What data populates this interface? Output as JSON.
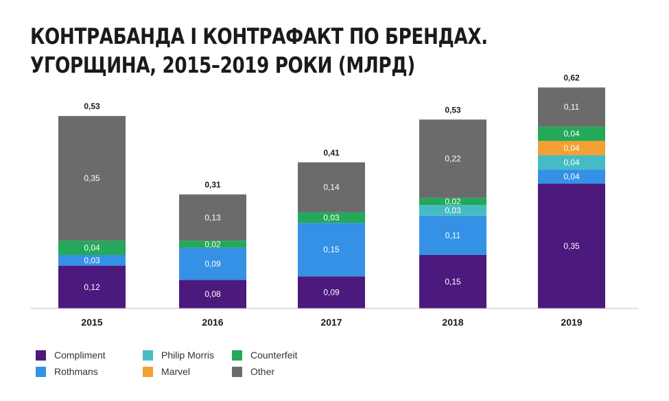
{
  "title": {
    "line1": "КОНТРАБАНДА І КОНТРАФАКТ ПО БРЕНДАХ.",
    "line2": "УГОРЩИНА, 2015–2019 РОКИ (МЛРД)"
  },
  "colors": {
    "Compliment": "#4b1a7c",
    "Rothmans": "#3591e6",
    "Philip Morris": "#45bcc4",
    "Marvel": "#f3a032",
    "Counterfeit": "#24a85a",
    "Other": "#6b6b6b"
  },
  "chart_data": {
    "type": "bar",
    "stacked": true,
    "categories": [
      "2015",
      "2016",
      "2017",
      "2018",
      "2019"
    ],
    "series": [
      {
        "name": "Compliment",
        "values": [
          0.12,
          0.08,
          0.09,
          0.15,
          0.35
        ]
      },
      {
        "name": "Rothmans",
        "values": [
          0.03,
          0.09,
          0.15,
          0.11,
          0.04
        ]
      },
      {
        "name": "Philip Morris",
        "values": [
          null,
          null,
          null,
          0.03,
          0.04
        ]
      },
      {
        "name": "Marvel",
        "values": [
          null,
          null,
          null,
          null,
          0.04
        ]
      },
      {
        "name": "Counterfeit",
        "values": [
          0.04,
          0.02,
          0.03,
          0.02,
          0.04
        ]
      },
      {
        "name": "Other",
        "values": [
          0.35,
          0.13,
          0.14,
          0.22,
          0.11
        ]
      }
    ],
    "totals": [
      0.53,
      0.31,
      0.41,
      0.53,
      0.62
    ],
    "ylim": [
      0,
      0.66
    ],
    "grid": false,
    "legend_position": "bottom-left"
  },
  "legend": [
    {
      "label": "Compliment",
      "color": "#4b1a7c"
    },
    {
      "label": "Rothmans",
      "color": "#3591e6"
    },
    {
      "label": "Philip Morris",
      "color": "#45bcc4"
    },
    {
      "label": "Marvel",
      "color": "#f3a032"
    },
    {
      "label": "Counterfeit",
      "color": "#24a85a"
    },
    {
      "label": "Other",
      "color": "#6b6b6b"
    }
  ]
}
